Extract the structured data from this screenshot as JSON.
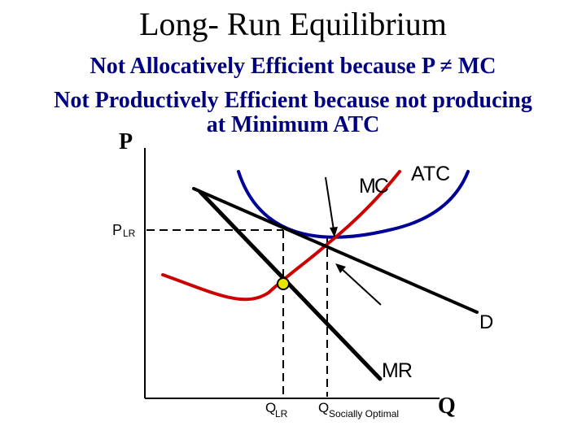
{
  "title": "Long- Run Equilibrium",
  "subtitle_lines": [
    "Not Allocatively Efficient because P ≠ MC",
    "Not Productively Efficient because not producing",
    "at Minimum ATC"
  ],
  "axes": {
    "y_label": "P",
    "x_label": "Q"
  },
  "labels": {
    "mc": "MC",
    "atc": "ATC",
    "d": "D",
    "mr": "MR",
    "p_lr_main": "P",
    "p_lr_sub": "LR",
    "q_lr_main": "Q",
    "q_lr_sub": "LR",
    "q_so_main": "Q",
    "q_so_sub": "Socially Optimal"
  },
  "colors": {
    "mc_curve": "#cc0000",
    "atc_curve": "#000099",
    "demand": "#000000",
    "mr": "#000000",
    "equilibrium_point": "#e6e600",
    "subtitle": "#000080"
  }
}
